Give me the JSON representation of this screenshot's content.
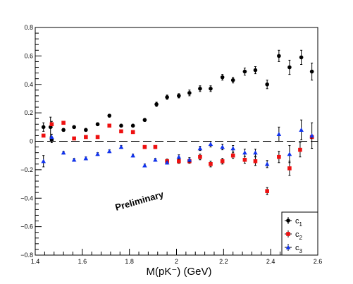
{
  "chart_data": {
    "type": "scatter",
    "xlabel": "M(pK⁻) (GeV)",
    "ylabel": "",
    "title": "",
    "annotation": "Preliminary",
    "xlim": [
      1.4,
      2.6
    ],
    "ylim": [
      -0.8,
      0.8
    ],
    "x_ticks": [
      1.4,
      1.6,
      1.8,
      2.0,
      2.2,
      2.4,
      2.6
    ],
    "x_tick_labels": [
      "1.4",
      "1.6",
      "1.8",
      "2",
      "2.2",
      "2.4",
      "2.6"
    ],
    "y_ticks": [
      -0.8,
      -0.6,
      -0.4,
      -0.2,
      0,
      0.2,
      0.4,
      0.6,
      0.8
    ],
    "y_tick_labels": [
      "−0.8",
      "−0.6",
      "−0.4",
      "−0.2",
      "0",
      "0.2",
      "0.4",
      "0.6",
      "0.8"
    ],
    "grid": false,
    "reference_line": {
      "y": 0,
      "style": "dashed"
    },
    "legend": {
      "position": "bottom-right"
    },
    "series": [
      {
        "name": "c",
        "subscript": "1",
        "color": "#000000",
        "marker": "circle",
        "points": [
          {
            "x": 1.435,
            "y": 0.1,
            "err": 0.03
          },
          {
            "x": 1.465,
            "y": 0.1,
            "err": 0.07
          },
          {
            "x": 1.47,
            "y": 0.01,
            "err": 0.02
          },
          {
            "x": 1.52,
            "y": 0.08,
            "err": 0.01
          },
          {
            "x": 1.565,
            "y": 0.1,
            "err": 0.01
          },
          {
            "x": 1.615,
            "y": 0.08,
            "err": 0.01
          },
          {
            "x": 1.665,
            "y": 0.12,
            "err": 0.01
          },
          {
            "x": 1.715,
            "y": 0.18,
            "err": 0.01
          },
          {
            "x": 1.765,
            "y": 0.11,
            "err": 0.01
          },
          {
            "x": 1.815,
            "y": 0.11,
            "err": 0.01
          },
          {
            "x": 1.865,
            "y": 0.15,
            "err": 0.01
          },
          {
            "x": 1.915,
            "y": 0.26,
            "err": 0.015
          },
          {
            "x": 1.96,
            "y": 0.31,
            "err": 0.015
          },
          {
            "x": 2.01,
            "y": 0.32,
            "err": 0.015
          },
          {
            "x": 2.055,
            "y": 0.34,
            "err": 0.02
          },
          {
            "x": 2.1,
            "y": 0.37,
            "err": 0.02
          },
          {
            "x": 2.145,
            "y": 0.37,
            "err": 0.02
          },
          {
            "x": 2.195,
            "y": 0.45,
            "err": 0.02
          },
          {
            "x": 2.24,
            "y": 0.43,
            "err": 0.02
          },
          {
            "x": 2.29,
            "y": 0.49,
            "err": 0.025
          },
          {
            "x": 2.335,
            "y": 0.5,
            "err": 0.025
          },
          {
            "x": 2.385,
            "y": 0.4,
            "err": 0.03
          },
          {
            "x": 2.435,
            "y": 0.6,
            "err": 0.04
          },
          {
            "x": 2.48,
            "y": 0.52,
            "err": 0.05
          },
          {
            "x": 2.53,
            "y": 0.59,
            "err": 0.05
          },
          {
            "x": 2.575,
            "y": 0.49,
            "err": 0.06
          }
        ]
      },
      {
        "name": "c",
        "subscript": "2",
        "color": "#ee1111",
        "marker": "square",
        "points": [
          {
            "x": 1.435,
            "y": 0.04,
            "err": 0.0
          },
          {
            "x": 1.47,
            "y": 0.12,
            "err": 0.02
          },
          {
            "x": 1.52,
            "y": 0.13,
            "err": 0.01
          },
          {
            "x": 1.565,
            "y": 0.02,
            "err": 0.01
          },
          {
            "x": 1.615,
            "y": 0.03,
            "err": 0.01
          },
          {
            "x": 1.665,
            "y": 0.03,
            "err": 0.01
          },
          {
            "x": 1.715,
            "y": 0.11,
            "err": 0.01
          },
          {
            "x": 1.765,
            "y": 0.07,
            "err": 0.01
          },
          {
            "x": 1.815,
            "y": 0.065,
            "err": 0.01
          },
          {
            "x": 1.865,
            "y": -0.04,
            "err": 0.01
          },
          {
            "x": 1.91,
            "y": -0.04,
            "err": 0.01
          },
          {
            "x": 1.96,
            "y": -0.14,
            "err": 0.015
          },
          {
            "x": 2.01,
            "y": -0.14,
            "err": 0.015
          },
          {
            "x": 2.055,
            "y": -0.14,
            "err": 0.015
          },
          {
            "x": 2.1,
            "y": -0.11,
            "err": 0.02
          },
          {
            "x": 2.145,
            "y": -0.16,
            "err": 0.02
          },
          {
            "x": 2.195,
            "y": -0.14,
            "err": 0.02
          },
          {
            "x": 2.24,
            "y": -0.1,
            "err": 0.02
          },
          {
            "x": 2.29,
            "y": -0.13,
            "err": 0.025
          },
          {
            "x": 2.335,
            "y": -0.14,
            "err": 0.03
          },
          {
            "x": 2.385,
            "y": -0.35,
            "err": 0.025
          },
          {
            "x": 2.435,
            "y": -0.11,
            "err": 0.04
          },
          {
            "x": 2.48,
            "y": -0.19,
            "err": 0.05
          },
          {
            "x": 2.525,
            "y": -0.06,
            "err": 0.05
          },
          {
            "x": 2.575,
            "y": 0.03,
            "err": 0.0
          }
        ]
      },
      {
        "name": "c",
        "subscript": "3",
        "color": "#1133ee",
        "marker": "triangle",
        "points": [
          {
            "x": 1.435,
            "y": -0.14,
            "err": 0.04
          },
          {
            "x": 1.47,
            "y": 0.03,
            "err": 0.02
          },
          {
            "x": 1.52,
            "y": -0.08,
            "err": 0.01
          },
          {
            "x": 1.565,
            "y": -0.13,
            "err": 0.01
          },
          {
            "x": 1.615,
            "y": -0.12,
            "err": 0.01
          },
          {
            "x": 1.665,
            "y": -0.09,
            "err": 0.01
          },
          {
            "x": 1.715,
            "y": -0.07,
            "err": 0.01
          },
          {
            "x": 1.765,
            "y": -0.04,
            "err": 0.01
          },
          {
            "x": 1.815,
            "y": -0.1,
            "err": 0.01
          },
          {
            "x": 1.865,
            "y": -0.17,
            "err": 0.01
          },
          {
            "x": 1.91,
            "y": -0.13,
            "err": 0.01
          },
          {
            "x": 1.96,
            "y": -0.15,
            "err": 0.01
          },
          {
            "x": 2.01,
            "y": -0.11,
            "err": 0.015
          },
          {
            "x": 2.055,
            "y": -0.13,
            "err": 0.015
          },
          {
            "x": 2.1,
            "y": -0.05,
            "err": 0.015
          },
          {
            "x": 2.145,
            "y": -0.02,
            "err": 0.02
          },
          {
            "x": 2.195,
            "y": -0.04,
            "err": 0.02
          },
          {
            "x": 2.24,
            "y": -0.05,
            "err": 0.02
          },
          {
            "x": 2.29,
            "y": -0.08,
            "err": 0.025
          },
          {
            "x": 2.335,
            "y": -0.08,
            "err": 0.025
          },
          {
            "x": 2.385,
            "y": -0.16,
            "err": 0.025
          },
          {
            "x": 2.435,
            "y": 0.05,
            "err": 0.05
          },
          {
            "x": 2.48,
            "y": -0.09,
            "err": 0.06
          },
          {
            "x": 2.53,
            "y": 0.08,
            "err": 0.07
          },
          {
            "x": 2.575,
            "y": 0.04,
            "err": 0.09
          }
        ]
      }
    ]
  }
}
